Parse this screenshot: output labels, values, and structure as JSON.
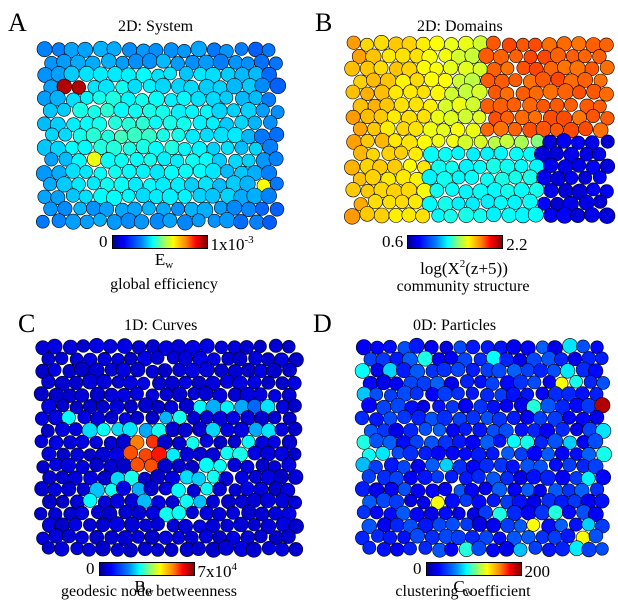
{
  "panels": [
    {
      "letter": "A",
      "title": "2D: System",
      "cb_min": "0",
      "cb_max_base": "1x10",
      "cb_max_exp": "-3",
      "symbol_main": "E",
      "symbol_sub": "w",
      "symbol_tail": "",
      "description": "global efficiency",
      "colormap": "jet",
      "pattern": "system"
    },
    {
      "letter": "B",
      "title": "2D: Domains",
      "cb_min": "0.6",
      "cb_max_base": "2.2",
      "cb_max_exp": "",
      "symbol_main": "log(X",
      "symbol_sup": "2",
      "symbol_tail": "(z+5))",
      "description": "community structure",
      "colormap": "jet",
      "pattern": "domains"
    },
    {
      "letter": "C",
      "title": "1D: Curves",
      "cb_min": "0",
      "cb_max_base": "7x10",
      "cb_max_exp": "4",
      "symbol_main": "B",
      "symbol_sub": "w",
      "symbol_tail": "",
      "description": "geodesic node betweenness",
      "colormap": "jet",
      "pattern": "curves"
    },
    {
      "letter": "D",
      "title": "0D: Particles",
      "cb_min": "0",
      "cb_max_base": "200",
      "cb_max_exp": "",
      "symbol_main": "C",
      "symbol_sub": "w",
      "symbol_tail": "",
      "description": "clustering coefficient",
      "colormap": "jet",
      "pattern": "particles"
    }
  ]
}
